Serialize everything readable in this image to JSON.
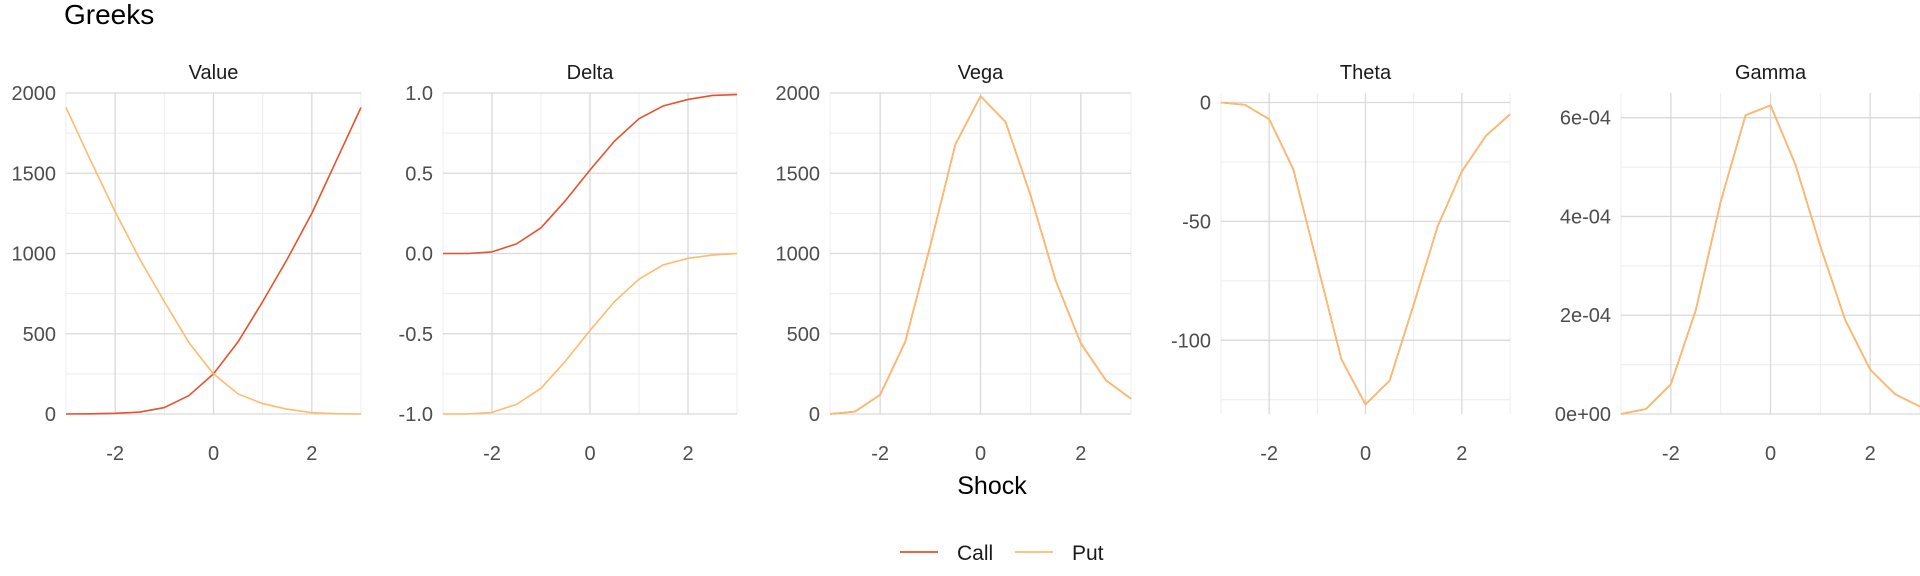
{
  "title": "Greeks",
  "colors": {
    "call": "#e8512b",
    "put": "#fdbb6b",
    "grid_major": "#d9d9d9",
    "grid_minor": "#ececec",
    "text": "#1a1a1a",
    "tick_text": "#4d4d4d"
  },
  "chart_data": {
    "type": "line",
    "facet_layout": "1 row, 5 columns",
    "shared_xlabel": "Shock",
    "legend": {
      "position": "bottom",
      "entries": [
        "Call",
        "Put"
      ]
    },
    "x": [
      -3,
      -2.5,
      -2,
      -1.5,
      -1,
      -0.5,
      0,
      0.5,
      1,
      1.5,
      2,
      2.5,
      3
    ],
    "xlim": [
      -3,
      3
    ],
    "xticks": [
      -2,
      0,
      2
    ],
    "xtick_labels": [
      "-2",
      "0",
      "2"
    ],
    "panels": [
      {
        "title": "Value",
        "ylim": [
          0,
          2000
        ],
        "yticks": [
          0,
          500,
          1000,
          1500,
          2000
        ],
        "ytick_labels": [
          "0",
          "500",
          "1000",
          "1500",
          "2000"
        ],
        "series": [
          {
            "name": "Call",
            "values": [
              0,
              1,
              4,
              12,
              40,
              115,
              250,
              450,
              700,
              965,
              1250,
              1580,
              1910
            ]
          },
          {
            "name": "Put",
            "values": [
              1910,
              1580,
              1260,
              965,
              700,
              445,
              250,
              125,
              65,
              30,
              8,
              2,
              0
            ]
          }
        ]
      },
      {
        "title": "Delta",
        "ylim": [
          -1,
          1
        ],
        "yticks": [
          -1,
          -0.5,
          0,
          0.5,
          1
        ],
        "ytick_labels": [
          "-1.0",
          "-0.5",
          "0.0",
          "0.5",
          "1.0"
        ],
        "series": [
          {
            "name": "Call",
            "values": [
              0,
              0,
              0.01,
              0.06,
              0.16,
              0.33,
              0.52,
              0.7,
              0.84,
              0.92,
              0.96,
              0.985,
              0.99
            ]
          },
          {
            "name": "Put",
            "values": [
              -1,
              -1,
              -0.99,
              -0.94,
              -0.84,
              -0.67,
              -0.48,
              -0.3,
              -0.16,
              -0.07,
              -0.03,
              -0.01,
              0
            ]
          }
        ]
      },
      {
        "title": "Vega",
        "ylim": [
          0,
          2000
        ],
        "yticks": [
          0,
          500,
          1000,
          1500,
          2000
        ],
        "ytick_labels": [
          "0",
          "500",
          "1000",
          "1500",
          "2000"
        ],
        "series": [
          {
            "name": "Call",
            "values": [
              0,
              15,
              120,
              450,
              1050,
              1680,
              1980,
              1820,
              1360,
              830,
              440,
              210,
              95
            ]
          },
          {
            "name": "Put",
            "values": [
              0,
              15,
              120,
              450,
              1050,
              1680,
              1980,
              1820,
              1360,
              830,
              440,
              210,
              95
            ]
          }
        ]
      },
      {
        "title": "Theta",
        "ylim": [
          -131,
          4
        ],
        "yticks": [
          -100,
          -50,
          0
        ],
        "ytick_labels": [
          "-100",
          "-50",
          "0"
        ],
        "series": [
          {
            "name": "Call",
            "values": [
              0,
              -1,
              -7,
              -28,
              -68,
              -108,
              -127,
              -117,
              -85,
              -52,
              -29,
              -14,
              -5
            ]
          },
          {
            "name": "Put",
            "values": [
              0,
              -1,
              -7,
              -28,
              -68,
              -108,
              -127,
              -117,
              -85,
              -52,
              -29,
              -14,
              -5
            ]
          }
        ]
      },
      {
        "title": "Gamma",
        "ylim": [
          0,
          0.00065
        ],
        "yticks": [
          0,
          0.0002,
          0.0004,
          0.0006
        ],
        "ytick_labels": [
          "0e+00",
          "2e-04",
          "4e-04",
          "6e-04"
        ],
        "series": [
          {
            "name": "Call",
            "values": [
              0,
              1e-05,
              6e-05,
              0.00021,
              0.00043,
              0.000605,
              0.000625,
              0.000505,
              0.00034,
              0.00019,
              9e-05,
              4e-05,
              1.5e-05
            ]
          },
          {
            "name": "Put",
            "values": [
              0,
              1e-05,
              6e-05,
              0.00021,
              0.00043,
              0.000605,
              0.000625,
              0.000505,
              0.00034,
              0.00019,
              9e-05,
              4e-05,
              1.5e-05
            ]
          }
        ]
      }
    ]
  }
}
